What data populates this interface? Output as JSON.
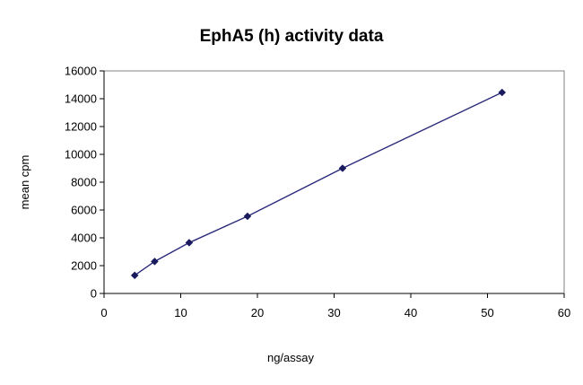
{
  "chart_data": {
    "type": "line",
    "title": "EphA5 (h) activity data",
    "xlabel": "ng/assay",
    "ylabel": "mean cpm",
    "xlim": [
      0,
      60
    ],
    "ylim": [
      0,
      16000
    ],
    "x_ticks": [
      0,
      10,
      20,
      30,
      40,
      50,
      60
    ],
    "y_ticks": [
      0,
      2000,
      4000,
      6000,
      8000,
      10000,
      12000,
      14000,
      16000
    ],
    "grid": false,
    "legend": "none",
    "series": [
      {
        "color": "#2b2b7a",
        "marker": "diamond",
        "points": [
          {
            "x": 4.0,
            "y": 1300
          },
          {
            "x": 6.6,
            "y": 2300
          },
          {
            "x": 11.1,
            "y": 3650
          },
          {
            "x": 18.7,
            "y": 5550
          },
          {
            "x": 31.1,
            "y": 9000
          },
          {
            "x": 51.9,
            "y": 14450
          }
        ]
      }
    ]
  }
}
